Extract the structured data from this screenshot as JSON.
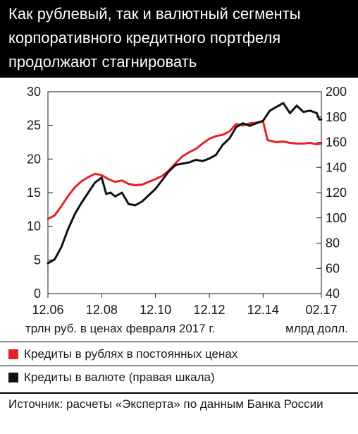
{
  "header": {
    "title_lines": [
      "Как рублевый, так и валютный сегменты",
      "корпоративного кредитного портфеля",
      "продолжают стагнировать"
    ]
  },
  "units": {
    "left": "трлн руб. в ценах февраля 2017 г.",
    "right": "млрд долл."
  },
  "legend": {
    "rub": "Кредиты в рублях в постоянных ценах",
    "fx": "Кредиты в валюте (правая шкала)"
  },
  "source": "Источник: расчеты «Эксперта» по данным Банка России",
  "colors": {
    "rub": "#e8202a",
    "fx": "#111111",
    "title_bg": "#000000"
  },
  "chart_data": {
    "type": "line",
    "x_tick_labels": [
      "12.06",
      "12.08",
      "12.10",
      "12.12",
      "12.14",
      "02.17"
    ],
    "x_tick_dates": [
      "2006-12",
      "2008-12",
      "2010-12",
      "2012-12",
      "2014-12",
      "2017-02"
    ],
    "y_left": {
      "ticks": [
        0,
        5,
        10,
        15,
        20,
        25,
        30
      ],
      "lim": [
        0,
        30
      ]
    },
    "y_right": {
      "ticks": [
        40,
        60,
        80,
        100,
        120,
        140,
        160,
        180,
        200
      ],
      "lim": [
        40,
        200
      ]
    },
    "grid": false,
    "series": [
      {
        "name": "Кредиты в рублях в постоянных ценах",
        "axis": "left",
        "color": "#e8202a",
        "points": [
          [
            "2006-12",
            11.1
          ],
          [
            "2007-03",
            11.6
          ],
          [
            "2007-06",
            13.0
          ],
          [
            "2007-09",
            14.5
          ],
          [
            "2007-12",
            15.8
          ],
          [
            "2008-03",
            16.7
          ],
          [
            "2008-06",
            17.3
          ],
          [
            "2008-09",
            17.8
          ],
          [
            "2008-12",
            17.6
          ],
          [
            "2009-03",
            17.0
          ],
          [
            "2009-06",
            16.6
          ],
          [
            "2009-09",
            16.8
          ],
          [
            "2009-12",
            16.3
          ],
          [
            "2010-03",
            16.1
          ],
          [
            "2010-06",
            16.2
          ],
          [
            "2010-09",
            16.6
          ],
          [
            "2010-12",
            17.0
          ],
          [
            "2011-03",
            17.5
          ],
          [
            "2011-06",
            18.3
          ],
          [
            "2011-09",
            19.4
          ],
          [
            "2011-12",
            20.4
          ],
          [
            "2012-03",
            21.0
          ],
          [
            "2012-06",
            21.5
          ],
          [
            "2012-09",
            22.3
          ],
          [
            "2012-12",
            23.0
          ],
          [
            "2013-03",
            23.4
          ],
          [
            "2013-06",
            23.6
          ],
          [
            "2013-09",
            24.1
          ],
          [
            "2013-12",
            25.2
          ],
          [
            "2014-03",
            25.0
          ],
          [
            "2014-06",
            25.3
          ],
          [
            "2014-09",
            25.4
          ],
          [
            "2014-12",
            25.6
          ],
          [
            "2015-02",
            22.8
          ],
          [
            "2015-06",
            22.5
          ],
          [
            "2015-09",
            22.6
          ],
          [
            "2015-12",
            22.4
          ],
          [
            "2016-03",
            22.3
          ],
          [
            "2016-06",
            22.3
          ],
          [
            "2016-09",
            22.4
          ],
          [
            "2016-12",
            22.2
          ],
          [
            "2017-02",
            22.3
          ]
        ]
      },
      {
        "name": "Кредиты в валюте (правая шкала)",
        "axis": "right",
        "color": "#111111",
        "points": [
          [
            "2006-12",
            64
          ],
          [
            "2007-03",
            67
          ],
          [
            "2007-06",
            77
          ],
          [
            "2007-09",
            91
          ],
          [
            "2007-12",
            103
          ],
          [
            "2008-03",
            112
          ],
          [
            "2008-06",
            120
          ],
          [
            "2008-09",
            128
          ],
          [
            "2008-12",
            132
          ],
          [
            "2009-02",
            119
          ],
          [
            "2009-04",
            120
          ],
          [
            "2009-06",
            117
          ],
          [
            "2009-09",
            120
          ],
          [
            "2009-12",
            111
          ],
          [
            "2010-03",
            110
          ],
          [
            "2010-06",
            113
          ],
          [
            "2010-09",
            118
          ],
          [
            "2010-12",
            123
          ],
          [
            "2011-03",
            130
          ],
          [
            "2011-06",
            137
          ],
          [
            "2011-09",
            142
          ],
          [
            "2011-12",
            143
          ],
          [
            "2012-03",
            144
          ],
          [
            "2012-06",
            146
          ],
          [
            "2012-09",
            145
          ],
          [
            "2012-12",
            147
          ],
          [
            "2013-03",
            150
          ],
          [
            "2013-06",
            158
          ],
          [
            "2013-09",
            163
          ],
          [
            "2013-12",
            172
          ],
          [
            "2014-03",
            175
          ],
          [
            "2014-06",
            173
          ],
          [
            "2014-09",
            175
          ],
          [
            "2014-12",
            177
          ],
          [
            "2015-03",
            185
          ],
          [
            "2015-06",
            188
          ],
          [
            "2015-09",
            191
          ],
          [
            "2015-12",
            183
          ],
          [
            "2016-03",
            189
          ],
          [
            "2016-06",
            184
          ],
          [
            "2016-09",
            185
          ],
          [
            "2016-12",
            183
          ],
          [
            "2017-01",
            178
          ],
          [
            "2017-02",
            178
          ]
        ]
      }
    ]
  }
}
